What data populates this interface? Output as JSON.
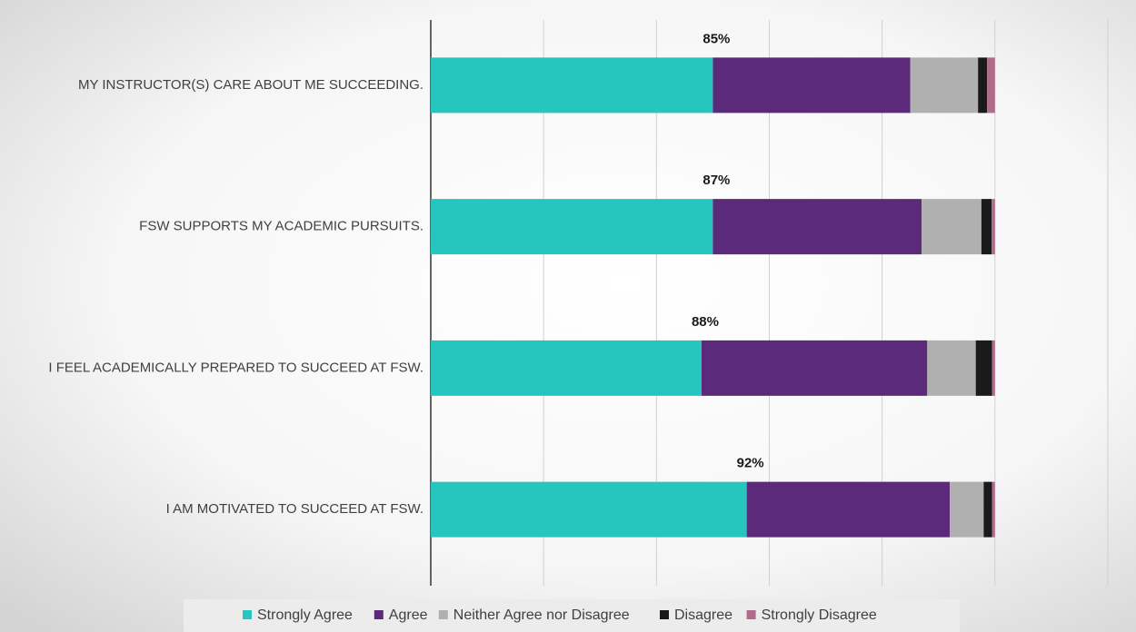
{
  "chart_data": {
    "type": "stacked-bar-horizontal",
    "categories": [
      "MY INSTRUCTOR(S) CARE ABOUT ME SUCCEEDING.",
      "FSW SUPPORTS MY ACADEMIC PURSUITS.",
      "I FEEL ACADEMICALLY PREPARED TO SUCCEED AT FSW.",
      "I AM MOTIVATED TO SUCCEED AT FSW."
    ],
    "series": [
      {
        "name": "Strongly Agree",
        "color": "#26c6bf",
        "values": [
          50,
          50,
          48,
          56
        ]
      },
      {
        "name": "Agree",
        "color": "#5c2a7a",
        "values": [
          35,
          37,
          40,
          36
        ]
      },
      {
        "name": "Neither Agree nor Disagree",
        "color": "#b0b0b0",
        "values": [
          12,
          10.6,
          8.6,
          6
        ]
      },
      {
        "name": "Disagree",
        "color": "#1a1a1a",
        "values": [
          1.6,
          1.8,
          2.9,
          1.5
        ]
      },
      {
        "name": "Strongly Disagree",
        "color": "#b06a8a",
        "values": [
          1.4,
          0.6,
          0.5,
          0.5
        ]
      }
    ],
    "totals": {
      "values": [
        85,
        87,
        88,
        92
      ],
      "value_labels": [
        "85%",
        "87%",
        "88%",
        "92%"
      ]
    },
    "xlim": [
      0,
      125
    ],
    "xticks": [
      0,
      20,
      40,
      60,
      80,
      100,
      120
    ],
    "grid": true,
    "legend": "bottom"
  }
}
